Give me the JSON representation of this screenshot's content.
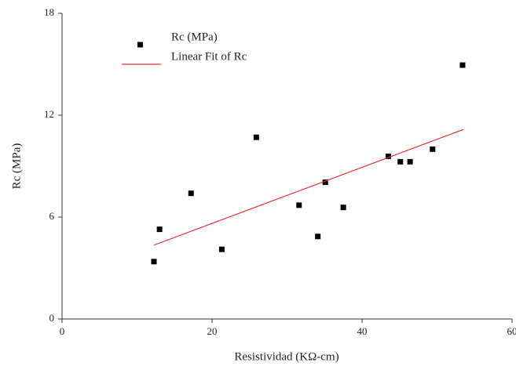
{
  "chart_data": {
    "type": "scatter",
    "x_label": "Resistividad (KΩ-cm)",
    "y_label": "Rc (MPa)",
    "series": [
      {
        "name": "Rc (MPa)",
        "type": "scatter",
        "color": "#000000",
        "x": [
          12.25,
          13.0,
          17.2,
          21.3,
          25.9,
          31.6,
          34.1,
          35.1,
          37.5,
          43.5,
          45.1,
          46.4,
          49.4,
          53.4
        ],
        "values": [
          3.38,
          5.28,
          7.4,
          4.1,
          10.7,
          6.7,
          4.86,
          8.05,
          6.57,
          9.58,
          9.26,
          9.26,
          10.0,
          14.95
        ]
      },
      {
        "name": "Linear Fit of Rc",
        "type": "line",
        "color": "#e03030",
        "x": [
          12.25,
          53.5
        ],
        "values": [
          4.35,
          11.16
        ]
      }
    ],
    "xlim": [
      0,
      60
    ],
    "xticks": [
      0,
      20,
      40,
      60
    ],
    "ylim": [
      0,
      18
    ],
    "yticks": [
      0,
      6,
      12,
      18
    ],
    "grid": false,
    "legend": "top-left"
  }
}
